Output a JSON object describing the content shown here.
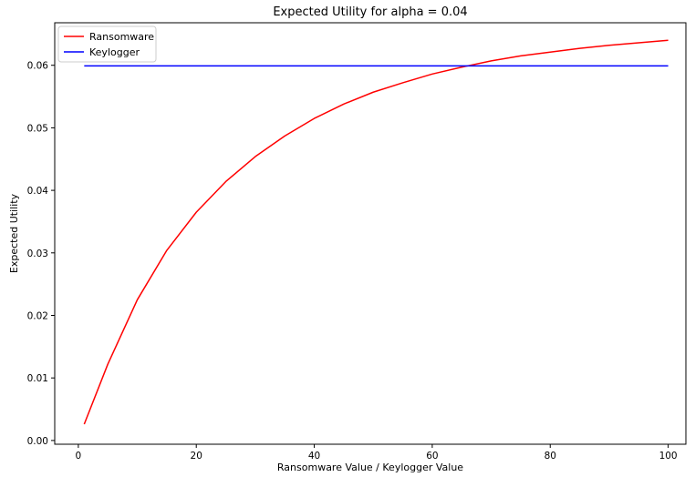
{
  "chart_data": {
    "type": "line",
    "title": "Expected Utility for alpha = 0.04",
    "xlabel": "Ransomware Value / Keylogger Value",
    "ylabel": "Expected Utility",
    "xlim": [
      -4,
      103
    ],
    "ylim": [
      -0.0006,
      0.0668
    ],
    "x_ticks": [
      0,
      20,
      40,
      60,
      80,
      100
    ],
    "y_ticks": [
      0.0,
      0.01,
      0.02,
      0.03,
      0.04,
      0.05,
      0.06
    ],
    "y_tick_labels": [
      "0.00",
      "0.01",
      "0.02",
      "0.03",
      "0.04",
      "0.05",
      "0.06"
    ],
    "grid": false,
    "legend_position": "top-left",
    "series": [
      {
        "name": "Ransomware",
        "color": "#ff0000",
        "x": [
          1,
          5,
          10,
          15,
          20,
          25,
          30,
          35,
          40,
          45,
          50,
          55,
          60,
          65,
          70,
          75,
          80,
          85,
          90,
          95,
          100
        ],
        "y": [
          0.0026,
          0.0122,
          0.0225,
          0.0304,
          0.0365,
          0.0414,
          0.0454,
          0.0487,
          0.0515,
          0.0538,
          0.0557,
          0.0572,
          0.0586,
          0.0597,
          0.0607,
          0.0615,
          0.0621,
          0.0627,
          0.0632,
          0.0636,
          0.064
        ]
      },
      {
        "name": "Keylogger",
        "color": "#0000ff",
        "x": [
          1,
          100
        ],
        "y": [
          0.0599,
          0.0599
        ]
      }
    ]
  }
}
